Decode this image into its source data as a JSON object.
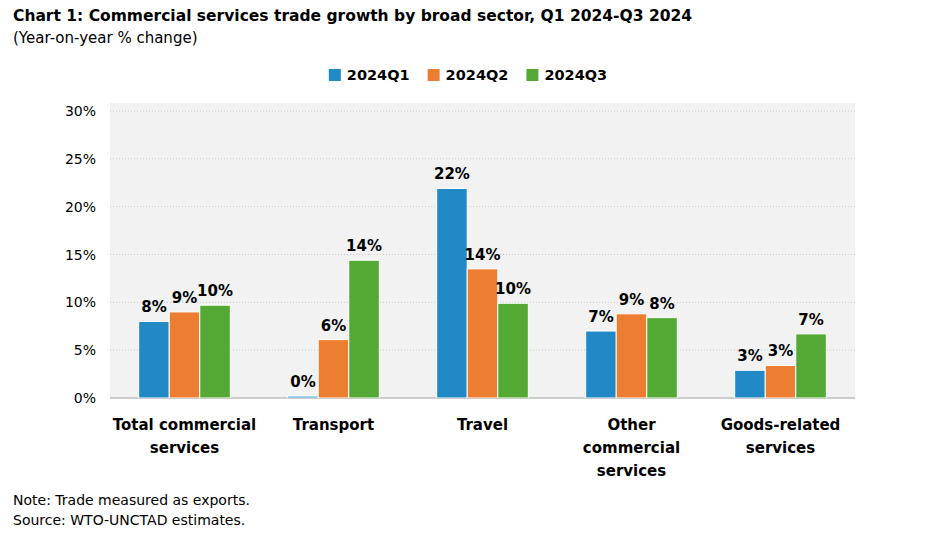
{
  "chart_data": {
    "type": "bar",
    "title": "Chart 1: Commercial services trade growth by broad sector, Q1 2024-Q3 2024",
    "subtitle": "(Year-on-year % change)",
    "note": "Note: Trade measured as exports.",
    "source": "Source: WTO-UNCTAD estimates.",
    "categories": [
      "Total commercial services",
      "Transport",
      "Travel",
      "Other commercial services",
      "Goods-related services"
    ],
    "series": [
      {
        "name": "2024Q1",
        "color": "#2189c5",
        "values": [
          8.0,
          0.2,
          21.9,
          7.0,
          2.9
        ],
        "value_labels": [
          "8%",
          "0%",
          "22%",
          "7%",
          "3%"
        ]
      },
      {
        "name": "2024Q2",
        "color": "#ed7d31",
        "values": [
          9.0,
          6.1,
          13.5,
          8.8,
          3.4
        ],
        "value_labels": [
          "9%",
          "6%",
          "14%",
          "9%",
          "3%"
        ]
      },
      {
        "name": "2024Q3",
        "color": "#53a933",
        "values": [
          9.7,
          14.4,
          9.9,
          8.4,
          6.7
        ],
        "value_labels": [
          "10%",
          "14%",
          "10%",
          "8%",
          "7%"
        ]
      }
    ],
    "ylim": [
      0,
      30
    ],
    "yticks": [
      {
        "value": 0,
        "label": "0%"
      },
      {
        "value": 5,
        "label": "5%"
      },
      {
        "value": 10,
        "label": "10%"
      },
      {
        "value": 15,
        "label": "15%"
      },
      {
        "value": 20,
        "label": "20%"
      },
      {
        "value": 25,
        "label": "25%"
      },
      {
        "value": 30,
        "label": "30%"
      }
    ],
    "grid": true,
    "legend": "top",
    "data_labels": true
  }
}
